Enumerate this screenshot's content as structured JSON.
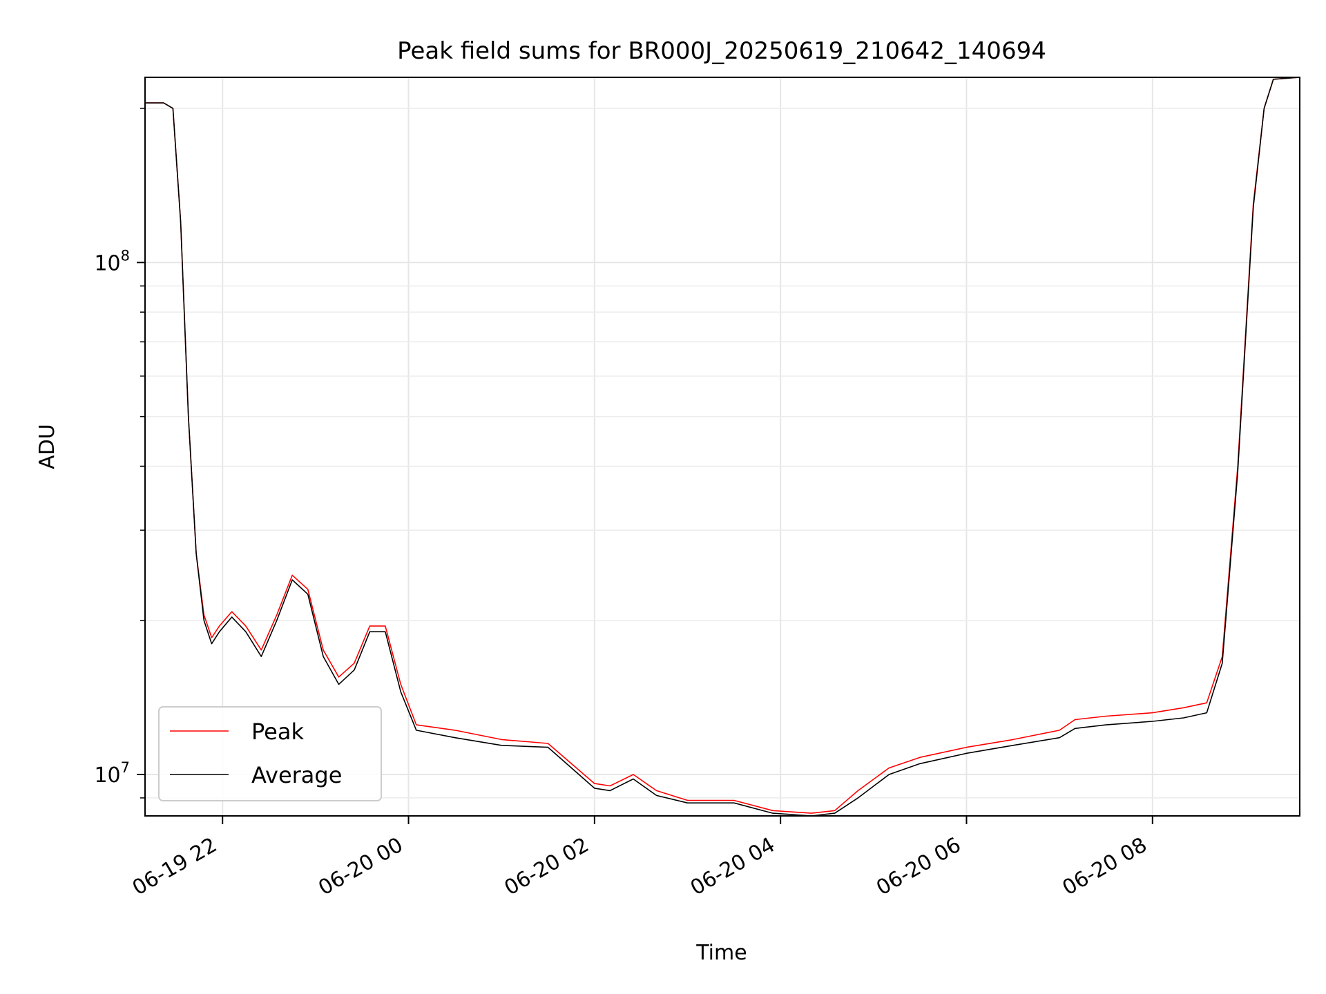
{
  "chart_data": {
    "type": "line",
    "title": "Peak field sums for BR000J_20250619_210642_140694",
    "xlabel": "Time",
    "ylabel": "ADU",
    "yscale": "log",
    "xlim": [
      "2025-06-19 21:10",
      "2025-06-20 09:35"
    ],
    "ylim": [
      8300000,
      230000000
    ],
    "x_ticks": [
      {
        "value": "2025-06-19 22:00",
        "label": "06-19 22"
      },
      {
        "value": "2025-06-20 00:00",
        "label": "06-20 00"
      },
      {
        "value": "2025-06-20 02:00",
        "label": "06-20 02"
      },
      {
        "value": "2025-06-20 04:00",
        "label": "06-20 04"
      },
      {
        "value": "2025-06-20 06:00",
        "label": "06-20 06"
      },
      {
        "value": "2025-06-20 08:00",
        "label": "06-20 08"
      }
    ],
    "y_ticks": [
      {
        "value": 10000000,
        "label_base": "10",
        "label_exp": "7"
      },
      {
        "value": 100000000,
        "label_base": "10",
        "label_exp": "8"
      }
    ],
    "grid": true,
    "legend_position": "lower-left",
    "series": [
      {
        "name": "Peak",
        "color": "#ff0000",
        "x": [
          "2025-06-19 21:10",
          "2025-06-19 21:22",
          "2025-06-19 21:28",
          "2025-06-19 21:33",
          "2025-06-19 21:38",
          "2025-06-19 21:43",
          "2025-06-19 21:48",
          "2025-06-19 21:53",
          "2025-06-19 21:58",
          "2025-06-19 22:06",
          "2025-06-19 22:15",
          "2025-06-19 22:25",
          "2025-06-19 22:35",
          "2025-06-19 22:45",
          "2025-06-19 22:55",
          "2025-06-19 23:05",
          "2025-06-19 23:15",
          "2025-06-19 23:25",
          "2025-06-19 23:35",
          "2025-06-19 23:45",
          "2025-06-19 23:55",
          "2025-06-20 00:05",
          "2025-06-20 00:30",
          "2025-06-20 01:00",
          "2025-06-20 01:30",
          "2025-06-20 02:00",
          "2025-06-20 02:10",
          "2025-06-20 02:25",
          "2025-06-20 02:40",
          "2025-06-20 03:00",
          "2025-06-20 03:30",
          "2025-06-20 03:55",
          "2025-06-20 04:20",
          "2025-06-20 04:35",
          "2025-06-20 04:50",
          "2025-06-20 05:10",
          "2025-06-20 05:30",
          "2025-06-20 06:00",
          "2025-06-20 06:30",
          "2025-06-20 07:00",
          "2025-06-20 07:10",
          "2025-06-20 07:30",
          "2025-06-20 08:00",
          "2025-06-20 08:20",
          "2025-06-20 08:35",
          "2025-06-20 08:45",
          "2025-06-20 08:55",
          "2025-06-20 09:05",
          "2025-06-20 09:12",
          "2025-06-20 09:18",
          "2025-06-20 09:35"
        ],
        "values": [
          205000000,
          205000000,
          200000000,
          120000000,
          50000000,
          27000000,
          20500000,
          18500000,
          19500000,
          20800000,
          19500000,
          17500000,
          20500000,
          24500000,
          23000000,
          17500000,
          15500000,
          16500000,
          19500000,
          19500000,
          15000000,
          12500000,
          12200000,
          11700000,
          11500000,
          9600000,
          9500000,
          10000000,
          9300000,
          8900000,
          8900000,
          8500000,
          8400000,
          8500000,
          9300000,
          10300000,
          10800000,
          11300000,
          11700000,
          12200000,
          12800000,
          13000000,
          13200000,
          13500000,
          13800000,
          17000000,
          40000000,
          130000000,
          200000000,
          228000000,
          230000000
        ]
      },
      {
        "name": "Average",
        "color": "#000000",
        "x": [
          "2025-06-19 21:10",
          "2025-06-19 21:22",
          "2025-06-19 21:28",
          "2025-06-19 21:33",
          "2025-06-19 21:38",
          "2025-06-19 21:43",
          "2025-06-19 21:48",
          "2025-06-19 21:53",
          "2025-06-19 21:58",
          "2025-06-19 22:06",
          "2025-06-19 22:15",
          "2025-06-19 22:25",
          "2025-06-19 22:35",
          "2025-06-19 22:45",
          "2025-06-19 22:55",
          "2025-06-19 23:05",
          "2025-06-19 23:15",
          "2025-06-19 23:25",
          "2025-06-19 23:35",
          "2025-06-19 23:45",
          "2025-06-19 23:55",
          "2025-06-20 00:05",
          "2025-06-20 00:30",
          "2025-06-20 01:00",
          "2025-06-20 01:30",
          "2025-06-20 02:00",
          "2025-06-20 02:10",
          "2025-06-20 02:25",
          "2025-06-20 02:40",
          "2025-06-20 03:00",
          "2025-06-20 03:30",
          "2025-06-20 03:55",
          "2025-06-20 04:20",
          "2025-06-20 04:35",
          "2025-06-20 04:50",
          "2025-06-20 05:10",
          "2025-06-20 05:30",
          "2025-06-20 06:00",
          "2025-06-20 06:30",
          "2025-06-20 07:00",
          "2025-06-20 07:10",
          "2025-06-20 07:30",
          "2025-06-20 08:00",
          "2025-06-20 08:20",
          "2025-06-20 08:35",
          "2025-06-20 08:45",
          "2025-06-20 08:55",
          "2025-06-20 09:05",
          "2025-06-20 09:12",
          "2025-06-20 09:18",
          "2025-06-20 09:35"
        ],
        "values": [
          205000000,
          205000000,
          200000000,
          120000000,
          50000000,
          27000000,
          20000000,
          18000000,
          19000000,
          20300000,
          19000000,
          17000000,
          20000000,
          24000000,
          22500000,
          17000000,
          15000000,
          16000000,
          19000000,
          19000000,
          14500000,
          12200000,
          11800000,
          11400000,
          11300000,
          9400000,
          9300000,
          9800000,
          9100000,
          8800000,
          8800000,
          8400000,
          8300000,
          8400000,
          9000000,
          10000000,
          10500000,
          11000000,
          11400000,
          11800000,
          12300000,
          12500000,
          12700000,
          12900000,
          13200000,
          16500000,
          39000000,
          128000000,
          200000000,
          228000000,
          230000000
        ]
      }
    ]
  }
}
